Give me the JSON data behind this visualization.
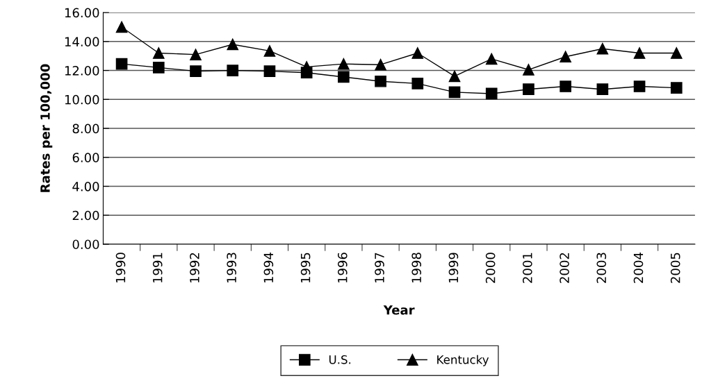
{
  "chart_data": {
    "type": "line",
    "xlabel": "Year",
    "ylabel": "Rates per 100,000",
    "categories": [
      "1990",
      "1991",
      "1992",
      "1993",
      "1994",
      "1995",
      "1996",
      "1997",
      "1998",
      "1999",
      "2000",
      "2001",
      "2002",
      "2003",
      "2004",
      "2005"
    ],
    "series": [
      {
        "name": "U.S.",
        "color": "#000000",
        "marker": "square",
        "values": [
          12.45,
          12.2,
          11.95,
          12.0,
          11.95,
          11.85,
          11.55,
          11.25,
          11.1,
          10.5,
          10.4,
          10.7,
          10.9,
          10.7,
          10.9,
          10.8
        ]
      },
      {
        "name": "Kentucky",
        "color": "#000000",
        "marker": "triangle",
        "values": [
          15.0,
          13.2,
          13.1,
          13.8,
          13.35,
          12.25,
          12.45,
          12.4,
          13.2,
          11.6,
          12.8,
          12.05,
          12.95,
          13.5,
          13.2,
          13.2
        ]
      }
    ],
    "ylim": [
      0,
      16
    ],
    "yticks": [
      {
        "value": 0,
        "label": "0.00"
      },
      {
        "value": 2,
        "label": "2.00"
      },
      {
        "value": 4,
        "label": "4.00"
      },
      {
        "value": 6,
        "label": "6.00"
      },
      {
        "value": 8,
        "label": "8.00"
      },
      {
        "value": 10,
        "label": "10.00"
      },
      {
        "value": 12,
        "label": "12.00"
      },
      {
        "value": 14,
        "label": "14.00"
      },
      {
        "value": 16,
        "label": "16.00"
      }
    ],
    "grid": "y",
    "legend": "bottom",
    "line_style": "solid"
  }
}
